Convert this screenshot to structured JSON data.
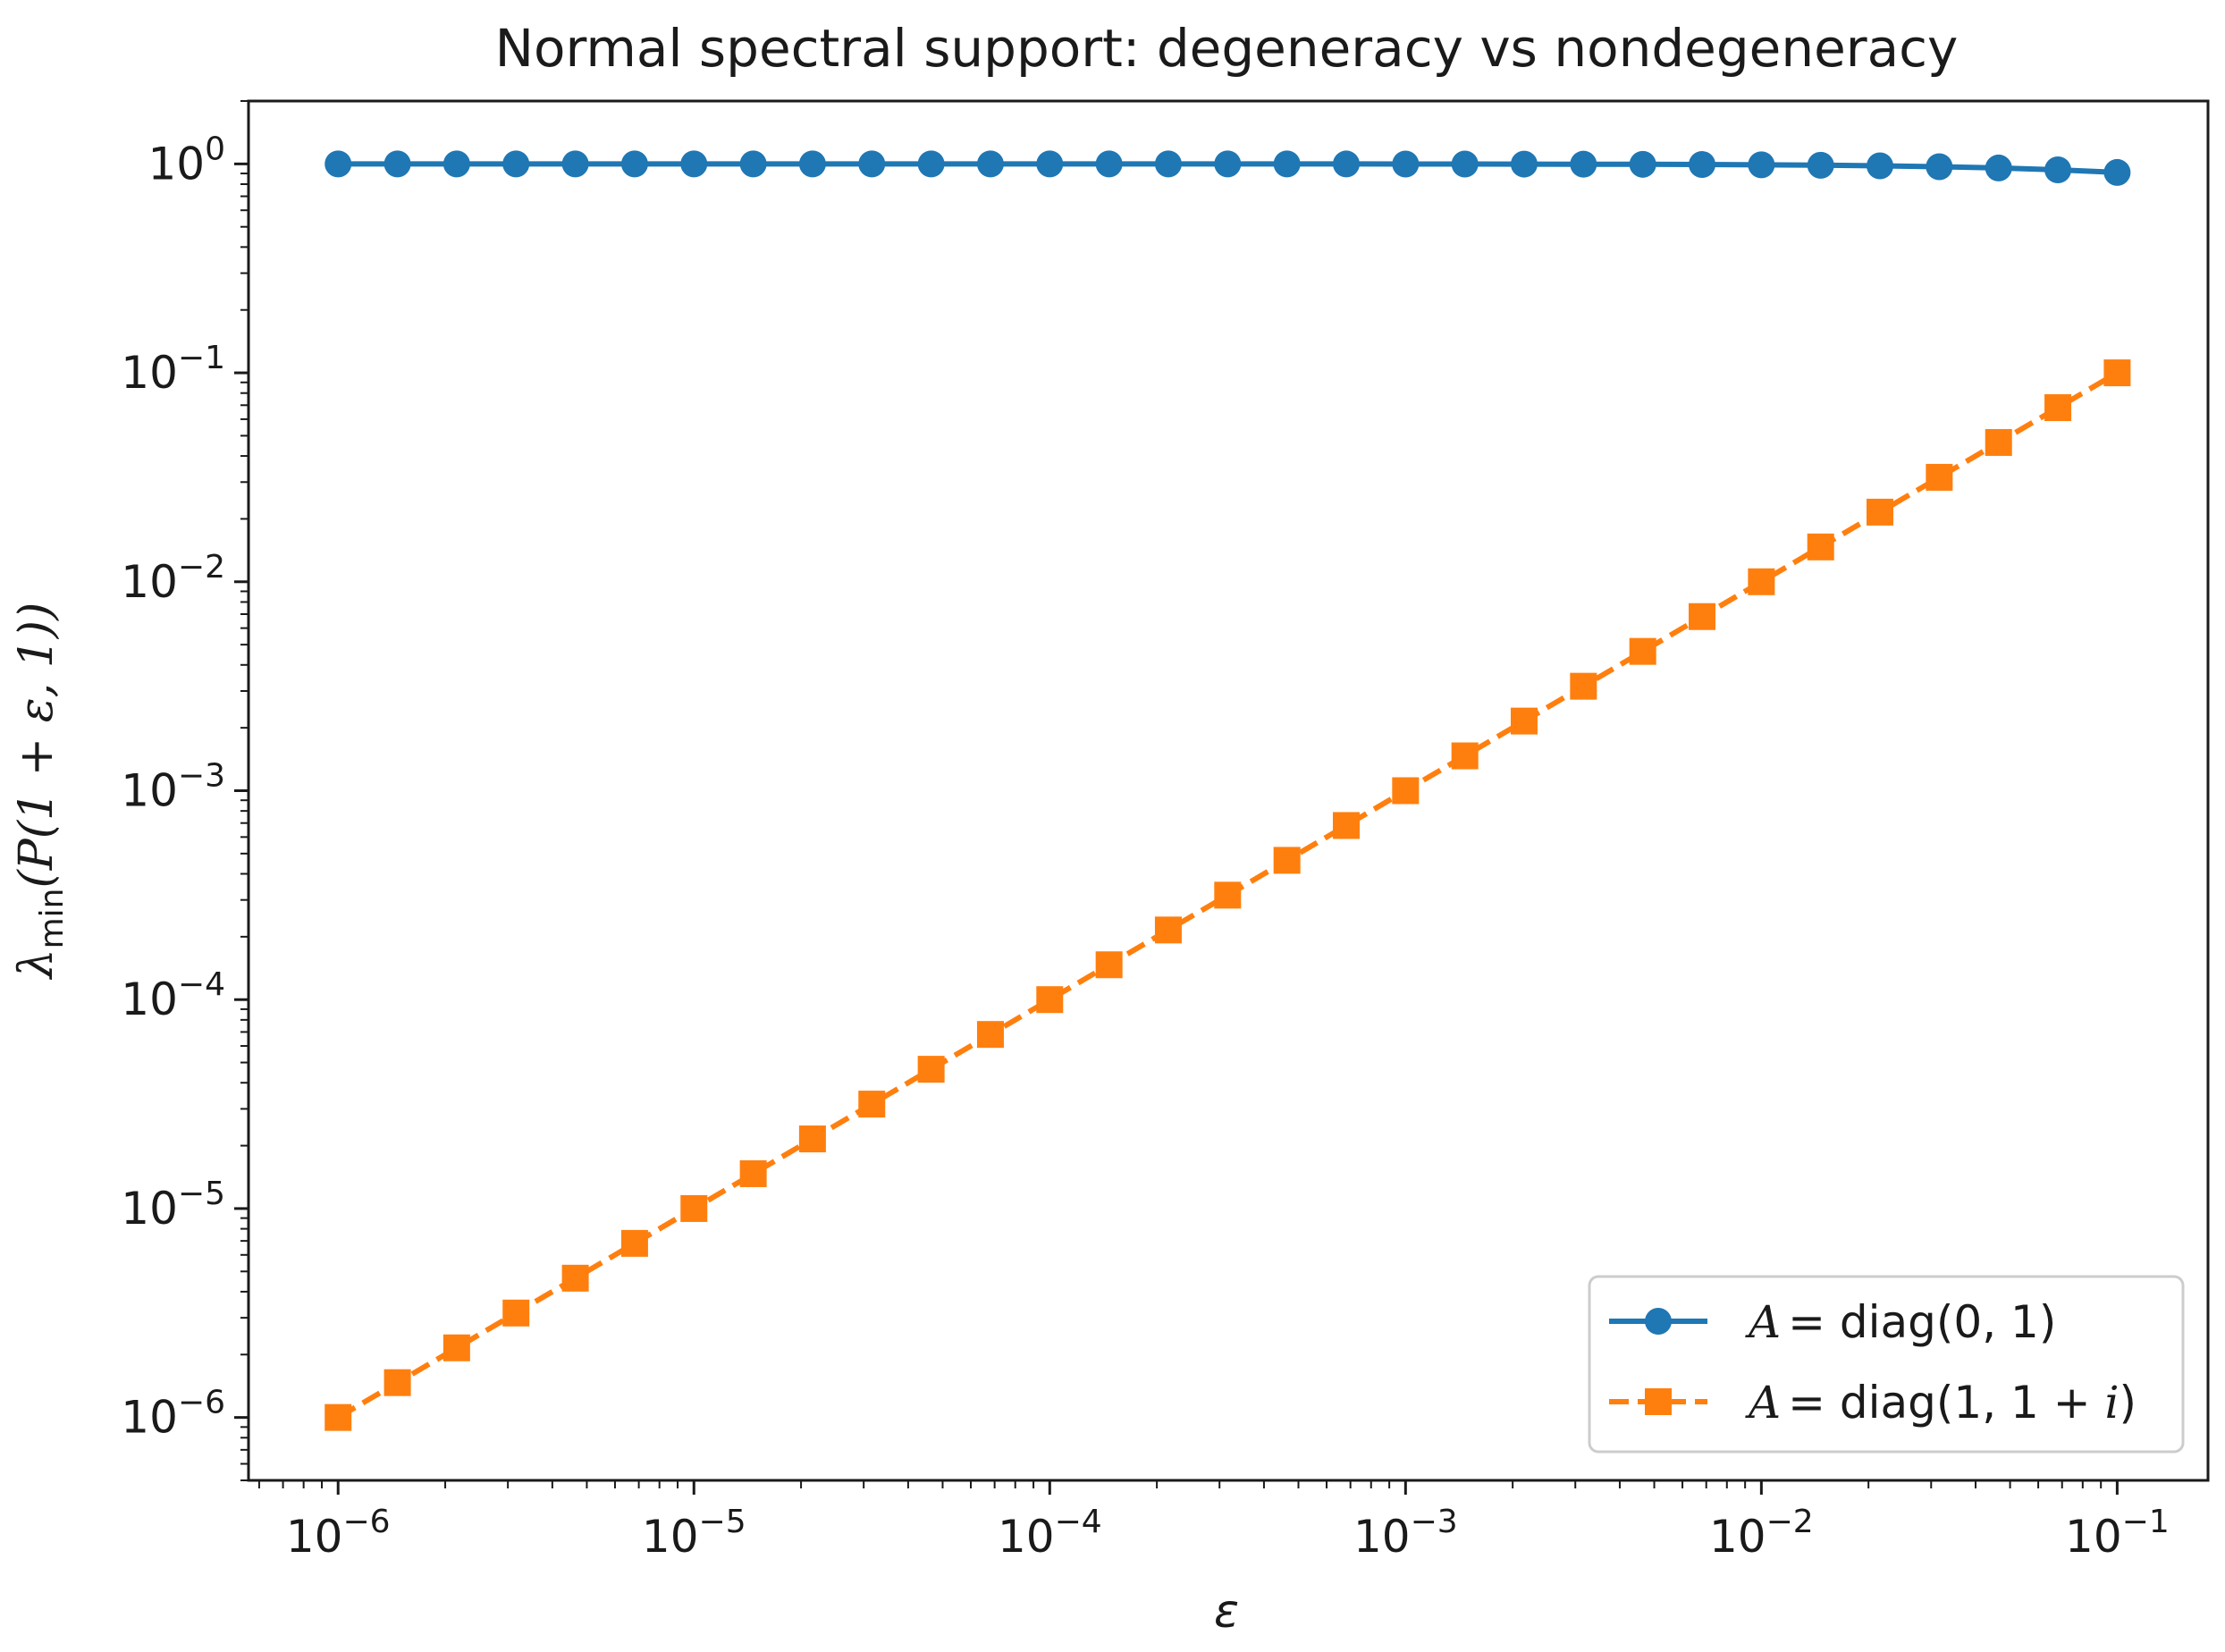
{
  "chart_data": {
    "type": "line",
    "title": "Normal spectral support: degeneracy vs nondegeneracy",
    "xlabel": "ε",
    "ylabel": {
      "lambda": "λ",
      "sub": "min",
      "rest": "(P(1 + ε, 1))"
    },
    "xscale": "log",
    "yscale": "log",
    "xlim": [
      5.6e-07,
      0.18
    ],
    "ylim": [
      5e-07,
      2.0
    ],
    "x_ticks": [
      {
        "base": "10",
        "exp": "−6"
      },
      {
        "base": "10",
        "exp": "−5"
      },
      {
        "base": "10",
        "exp": "−4"
      },
      {
        "base": "10",
        "exp": "−3"
      },
      {
        "base": "10",
        "exp": "−2"
      },
      {
        "base": "10",
        "exp": "−1"
      }
    ],
    "y_ticks": [
      {
        "base": "10",
        "exp": "−6"
      },
      {
        "base": "10",
        "exp": "−5"
      },
      {
        "base": "10",
        "exp": "−4"
      },
      {
        "base": "10",
        "exp": "−3"
      },
      {
        "base": "10",
        "exp": "−2"
      },
      {
        "base": "10",
        "exp": "−1"
      },
      {
        "base": "10",
        "exp": "0"
      }
    ],
    "x_tick_values": [
      1e-06,
      1e-05,
      0.0001,
      0.001,
      0.01,
      0.1
    ],
    "y_tick_values": [
      1e-06,
      1e-05,
      0.0001,
      0.001,
      0.01,
      0.1,
      1
    ],
    "legend_position": "lower-right",
    "x": [
      1e-06,
      1.468e-06,
      2.154e-06,
      3.162e-06,
      4.642e-06,
      6.813e-06,
      1e-05,
      1.468e-05,
      2.154e-05,
      3.162e-05,
      4.642e-05,
      6.813e-05,
      0.0001,
      0.0001468,
      0.0002154,
      0.0003162,
      0.0004642,
      0.0006813,
      0.001,
      0.001468,
      0.002154,
      0.003162,
      0.004642,
      0.006813,
      0.01,
      0.01468,
      0.02154,
      0.03162,
      0.04642,
      0.06813,
      0.1
    ],
    "series": [
      {
        "name": "A = diag(0, 1)",
        "legend": {
          "lhs": "A",
          "rhs": "= diag(0, 1)"
        },
        "color": "#1f77b4",
        "marker": "circle",
        "linestyle": "solid",
        "values": [
          1.0,
          1.0,
          1.0,
          1.0,
          1.0,
          1.0,
          1.0,
          1.0,
          1.0,
          1.0,
          0.9999,
          0.9999,
          0.9999,
          0.9999,
          0.9998,
          0.9997,
          0.9995,
          0.9993,
          0.999,
          0.9985,
          0.9978,
          0.9968,
          0.9954,
          0.9933,
          0.99,
          0.9855,
          0.979,
          0.9695,
          0.956,
          0.937,
          0.91
        ]
      },
      {
        "name": "A = diag(1, 1 + i)",
        "legend": {
          "lhs": "A",
          "rhs": "= diag(1, 1 + ",
          "tail": "i",
          "close": ")"
        },
        "color": "#ff7f0e",
        "marker": "square",
        "linestyle": "dashed",
        "values": [
          1e-06,
          1.468e-06,
          2.154e-06,
          3.162e-06,
          4.642e-06,
          6.813e-06,
          1e-05,
          1.468e-05,
          2.154e-05,
          3.162e-05,
          4.642e-05,
          6.813e-05,
          0.0001,
          0.0001468,
          0.0002154,
          0.0003162,
          0.0004642,
          0.0006813,
          0.001,
          0.001468,
          0.002154,
          0.003162,
          0.004642,
          0.006813,
          0.01,
          0.01468,
          0.02154,
          0.03162,
          0.04642,
          0.06813,
          0.1
        ]
      }
    ]
  }
}
